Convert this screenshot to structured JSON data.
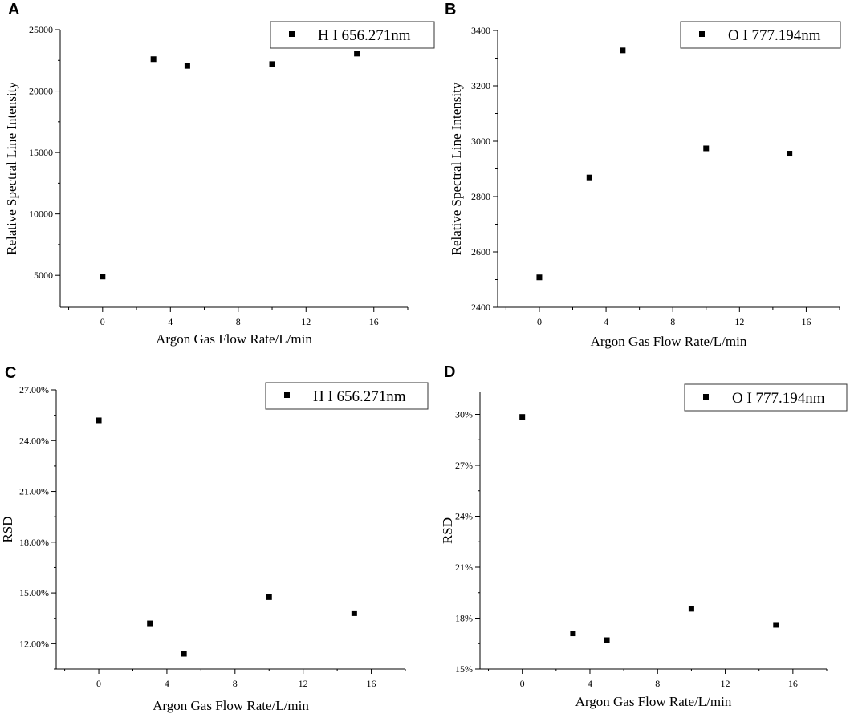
{
  "chart_data": [
    {
      "panel": "A",
      "type": "scatter",
      "x": [
        0,
        3,
        5,
        10,
        15
      ],
      "series": [
        {
          "name": "H I 656.271nm",
          "values": [
            4900,
            22600,
            22050,
            22200,
            23050
          ]
        }
      ],
      "xlabel": "Argon Gas Flow Rate/L/min",
      "ylabel": "Relative Spectral Line Intensity",
      "xlim": [
        -2.5,
        18
      ],
      "ylim": [
        2400,
        25000
      ],
      "xticks": [
        0,
        4,
        8,
        12,
        16
      ],
      "xtick_labels": [
        "0",
        "4",
        "8",
        "12",
        "16"
      ],
      "yticks": [
        5000,
        10000,
        15000,
        20000,
        25000
      ],
      "ytick_labels": [
        "5000",
        "10000",
        "15000",
        "20000",
        "25000"
      ],
      "legend_position": "top-right",
      "grid": false
    },
    {
      "panel": "B",
      "type": "scatter",
      "x": [
        0,
        3,
        5,
        10,
        15
      ],
      "series": [
        {
          "name": "O I 777.194nm",
          "values": [
            2508,
            2869,
            3328,
            2974,
            2955
          ]
        }
      ],
      "xlabel": "Argon Gas Flow Rate/L/min",
      "ylabel": "Relative Spectral Line Intensity",
      "xlim": [
        -2.5,
        18
      ],
      "ylim": [
        2400,
        3400
      ],
      "xticks": [
        0,
        4,
        8,
        12,
        16
      ],
      "xtick_labels": [
        "0",
        "4",
        "8",
        "12",
        "16"
      ],
      "yticks": [
        2400,
        2600,
        2800,
        3000,
        3200,
        3400
      ],
      "ytick_labels": [
        "2400",
        "2600",
        "2800",
        "3000",
        "3200",
        "3400"
      ],
      "legend_position": "top-right",
      "grid": false
    },
    {
      "panel": "C",
      "type": "scatter",
      "x": [
        0,
        3,
        5,
        10,
        15
      ],
      "series": [
        {
          "name": "H I 656.271nm",
          "values": [
            25.2,
            13.2,
            11.4,
            14.75,
            13.8
          ]
        }
      ],
      "xlabel": "Argon Gas Flow Rate/L/min",
      "ylabel": "RSD",
      "xlim": [
        -2.5,
        18
      ],
      "ylim": [
        10.5,
        27
      ],
      "xticks": [
        0,
        4,
        8,
        12,
        16
      ],
      "xtick_labels": [
        "0",
        "4",
        "8",
        "12",
        "16"
      ],
      "yticks": [
        12,
        15,
        18,
        21,
        24,
        27
      ],
      "ytick_labels": [
        "12.00%",
        "15.00%",
        "18.00%",
        "21.00%",
        "24.00%",
        "27.00%"
      ],
      "legend_position": "top-right",
      "grid": false
    },
    {
      "panel": "D",
      "type": "scatter",
      "x": [
        0,
        3,
        5,
        10,
        15
      ],
      "series": [
        {
          "name": "O I 777.194nm",
          "values": [
            29.85,
            17.1,
            16.7,
            18.55,
            17.6
          ]
        }
      ],
      "xlabel": "Argon Gas Flow Rate/L/min",
      "ylabel": "RSD",
      "xlim": [
        -2.5,
        18
      ],
      "ylim": [
        15,
        31.3
      ],
      "xticks": [
        0,
        4,
        8,
        12,
        16
      ],
      "xtick_labels": [
        "0",
        "4",
        "8",
        "12",
        "16"
      ],
      "yticks": [
        15,
        18,
        21,
        24,
        27,
        30
      ],
      "ytick_labels": [
        "15%",
        "18%",
        "21%",
        "24%",
        "27%",
        "30%"
      ],
      "legend_position": "top-right",
      "grid": false
    }
  ]
}
